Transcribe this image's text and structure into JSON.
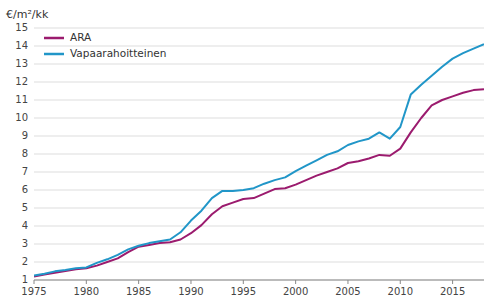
{
  "chart_data": {
    "type": "line",
    "ylabel": "€/m²/kk",
    "x": [
      1975,
      1976,
      1977,
      1978,
      1979,
      1980,
      1981,
      1982,
      1983,
      1984,
      1985,
      1986,
      1987,
      1988,
      1989,
      1990,
      1991,
      1992,
      1993,
      1994,
      1995,
      1996,
      1997,
      1998,
      1999,
      2000,
      2001,
      2002,
      2003,
      2004,
      2005,
      2006,
      2007,
      2008,
      2009,
      2010,
      2011,
      2012,
      2013,
      2014,
      2015,
      2016,
      2017,
      2018
    ],
    "series": [
      {
        "name": "ARA",
        "color": "#9B1B6E",
        "values": [
          1.2,
          1.3,
          1.4,
          1.5,
          1.6,
          1.65,
          1.8,
          2.0,
          2.2,
          2.55,
          2.85,
          2.95,
          3.05,
          3.1,
          3.25,
          3.6,
          4.05,
          4.65,
          5.1,
          5.3,
          5.5,
          5.55,
          5.8,
          6.05,
          6.1,
          6.3,
          6.55,
          6.8,
          7.0,
          7.2,
          7.5,
          7.6,
          7.75,
          7.95,
          7.9,
          8.3,
          9.2,
          10.0,
          10.7,
          11.0,
          11.2,
          11.4,
          11.55,
          11.6
        ]
      },
      {
        "name": "Vapaarahoitteinen",
        "color": "#2196C8",
        "values": [
          1.25,
          1.35,
          1.48,
          1.55,
          1.65,
          1.7,
          1.95,
          2.15,
          2.4,
          2.7,
          2.9,
          3.05,
          3.15,
          3.25,
          3.65,
          4.3,
          4.85,
          5.55,
          5.95,
          5.95,
          6.0,
          6.1,
          6.35,
          6.55,
          6.7,
          7.05,
          7.35,
          7.65,
          7.95,
          8.15,
          8.5,
          8.7,
          8.85,
          9.2,
          8.85,
          9.5,
          11.3,
          11.85,
          12.35,
          12.85,
          13.3,
          13.6,
          13.85,
          14.1
        ]
      }
    ],
    "xlim": [
      1975,
      2018
    ],
    "xticks": [
      1975,
      1980,
      1985,
      1990,
      1995,
      2000,
      2005,
      2010,
      2015
    ],
    "ylim": [
      1,
      15
    ],
    "yticks": [
      1,
      2,
      3,
      4,
      5,
      6,
      7,
      8,
      9,
      10,
      11,
      12,
      13,
      14,
      15
    ],
    "grid": true,
    "legend": "upper left"
  }
}
